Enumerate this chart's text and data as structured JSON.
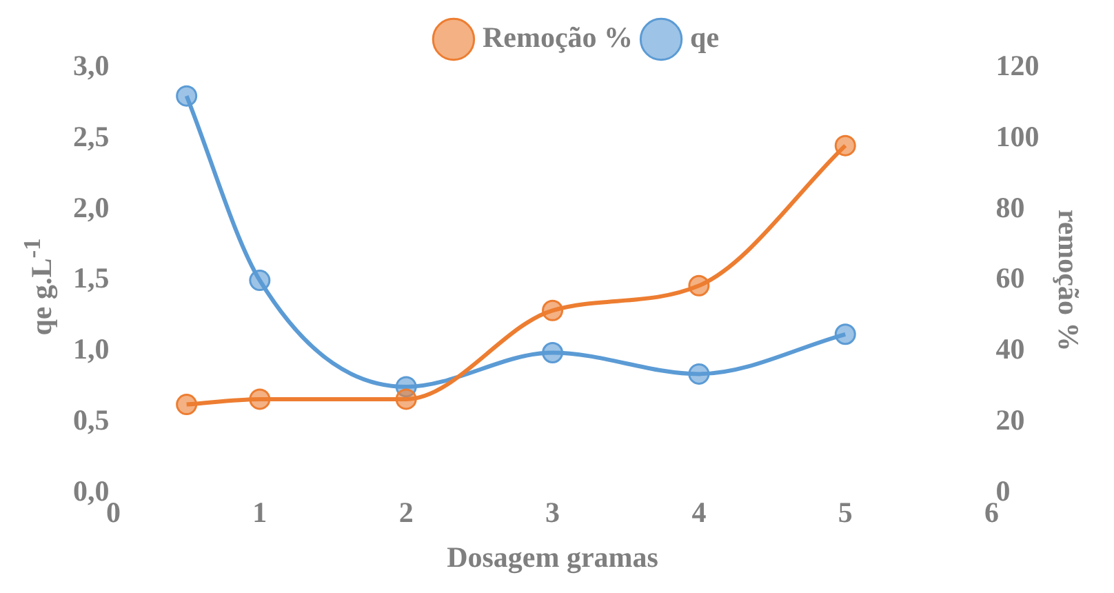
{
  "chart_data": {
    "type": "line",
    "xlabel": "Dosagem gramas",
    "ylabel": "qe g.L$^{-1}$",
    "y2label": "remoção %",
    "x": [
      0.5,
      1,
      2,
      3,
      4,
      5
    ],
    "series": [
      {
        "name": "Remoção %",
        "color": "#ed7d31",
        "axis": "y2",
        "values": [
          25,
          26.5,
          26.5,
          51.5,
          58.5,
          98
        ]
      },
      {
        "name": "qe",
        "color": "#5b9bd5",
        "values": [
          2.8,
          1.5,
          0.75,
          0.99,
          0.84,
          1.12
        ]
      }
    ],
    "xlim": [
      0,
      6
    ],
    "xticks": [
      0,
      1,
      2,
      3,
      4,
      5,
      6
    ],
    "ylim": [
      0,
      3
    ],
    "yticks": [
      {
        "value": 0,
        "label": "0,0"
      },
      {
        "value": 0.5,
        "label": "0,5"
      },
      {
        "value": 1,
        "label": "1,0"
      },
      {
        "value": 1.5,
        "label": "1,5"
      },
      {
        "value": 2,
        "label": "2,0"
      },
      {
        "value": 2.5,
        "label": "2,5"
      },
      {
        "value": 3,
        "label": "3,0"
      }
    ],
    "y2lim": [
      0,
      120
    ],
    "y2ticks": [
      0,
      20,
      40,
      60,
      80,
      100,
      120
    ],
    "grid": false,
    "legend": "top",
    "marker": "circle"
  }
}
